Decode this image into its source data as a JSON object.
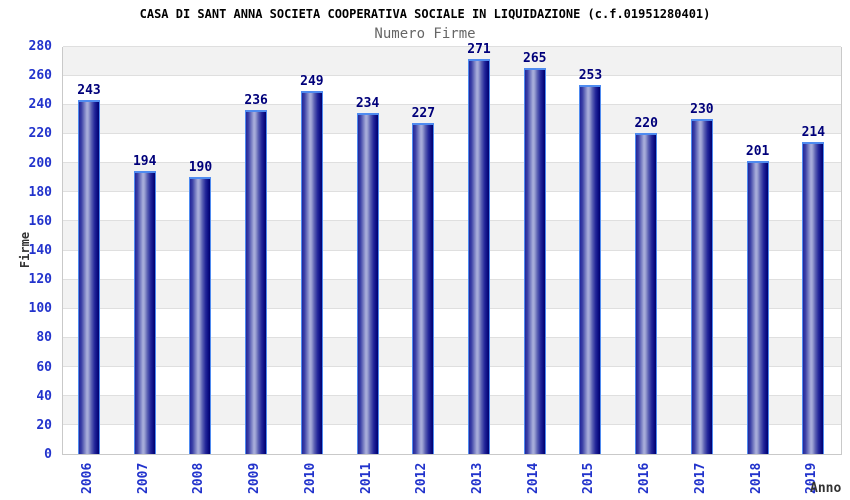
{
  "chart_data": {
    "type": "bar",
    "title": "CASA DI SANT ANNA SOCIETA COOPERATIVA SOCIALE IN LIQUIDAZIONE (c.f.01951280401)",
    "subtitle": "Numero Firme",
    "xlabel": "Anno",
    "ylabel": "Firme",
    "categories": [
      "2006",
      "2007",
      "2008",
      "2009",
      "2010",
      "2011",
      "2012",
      "2013",
      "2014",
      "2015",
      "2016",
      "2017",
      "2018",
      "2019"
    ],
    "values": [
      243,
      194,
      190,
      236,
      249,
      234,
      227,
      271,
      265,
      253,
      220,
      230,
      201,
      214
    ],
    "ylim": [
      0,
      280
    ],
    "ytick_step": 20,
    "yticks": [
      0,
      20,
      40,
      60,
      80,
      100,
      120,
      140,
      160,
      180,
      200,
      220,
      240,
      260,
      280
    ],
    "grid": "horizontal-bands",
    "legend": "none",
    "colors": {
      "title": "#000000",
      "subtitle": "#666666",
      "axis_title": "#333333",
      "tick_label": "#2233cc",
      "value_label": "#00007a",
      "bar_outline": "#4f8bf0",
      "bar_dark": "#23279a",
      "bar_highlight": "#abb0dc",
      "bar_darkest": "#00006e",
      "band_gray": "#f2f2f2",
      "band_white": "#ffffff",
      "gridline": "#dfdfdf",
      "plot_border": "#c9c9c9",
      "background": "#ffffff"
    }
  }
}
